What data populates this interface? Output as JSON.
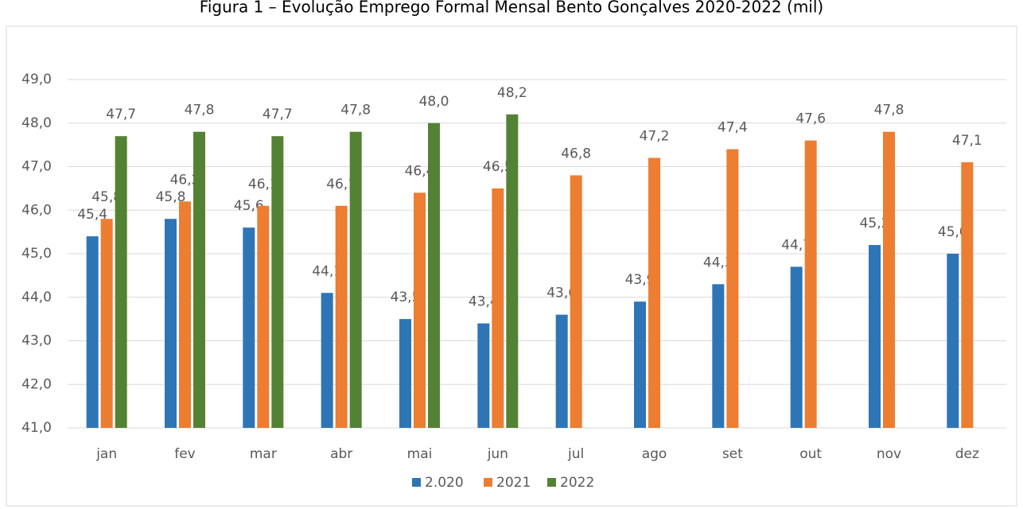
{
  "chart_data": {
    "type": "bar",
    "title": "Figura 1 – Evolução Emprego Formal Mensal Bento Gonçalves 2020-2022 (mil)",
    "categories": [
      "jan",
      "fev",
      "mar",
      "abr",
      "mai",
      "jun",
      "jul",
      "ago",
      "set",
      "out",
      "nov",
      "dez"
    ],
    "series": [
      {
        "name": "2.020",
        "color": "#2e75b6",
        "values": [
          45.4,
          45.8,
          45.6,
          44.1,
          43.5,
          43.4,
          43.6,
          43.9,
          44.3,
          44.7,
          45.2,
          45.0
        ],
        "value_labels": [
          "45,4",
          "45,8",
          "45,6",
          "44,1",
          "43,5",
          "43,4",
          "43,6",
          "43,9",
          "44,3",
          "44,7",
          "45,2",
          "45,0"
        ]
      },
      {
        "name": "2021",
        "color": "#ed7d31",
        "values": [
          45.8,
          46.2,
          46.1,
          46.1,
          46.4,
          46.5,
          46.8,
          47.2,
          47.4,
          47.6,
          47.8,
          47.1
        ],
        "value_labels": [
          "45,8",
          "46,2",
          "46,1",
          "46,1",
          "46,4",
          "46,5",
          "46,8",
          "47,2",
          "47,4",
          "47,6",
          "47,8",
          "47,1"
        ]
      },
      {
        "name": "2022",
        "color": "#548235",
        "values": [
          47.7,
          47.8,
          47.7,
          47.8,
          48.0,
          48.2,
          null,
          null,
          null,
          null,
          null,
          null
        ],
        "value_labels": [
          "47,7",
          "47,8",
          "47,7",
          "47,8",
          "48,0",
          "48,2",
          null,
          null,
          null,
          null,
          null,
          null
        ]
      }
    ],
    "ylim": [
      41,
      49
    ],
    "yticks": [
      {
        "value": 41,
        "label": "41,0"
      },
      {
        "value": 42,
        "label": "42,0"
      },
      {
        "value": 43,
        "label": "43,0"
      },
      {
        "value": 44,
        "label": "44,0"
      },
      {
        "value": 45,
        "label": "45,0"
      },
      {
        "value": 46,
        "label": "46,0"
      },
      {
        "value": 47,
        "label": "47,0"
      },
      {
        "value": 48,
        "label": "48,0"
      },
      {
        "value": 49,
        "label": "49,0"
      }
    ],
    "grid": true,
    "legend": "bottom"
  }
}
